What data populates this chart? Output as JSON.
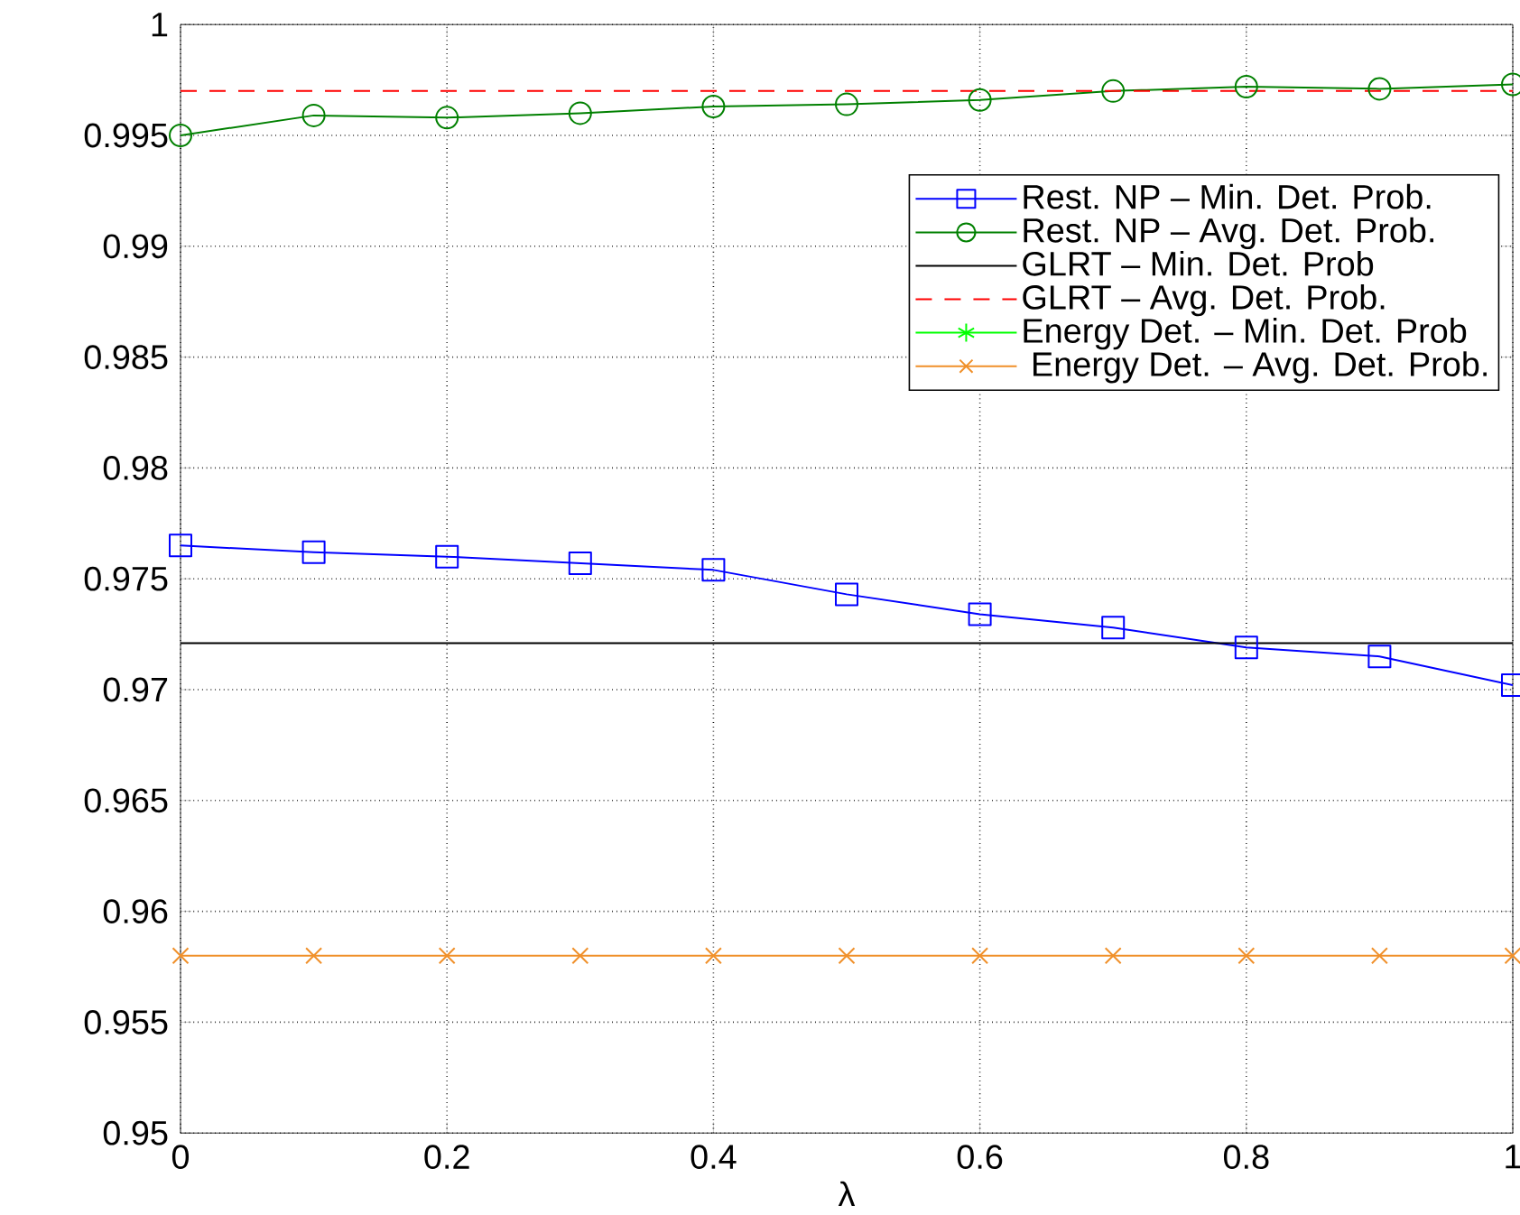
{
  "chart_data": {
    "type": "line",
    "xlabel": "λ",
    "xlim": [
      0,
      1
    ],
    "ylim": [
      0.95,
      1
    ],
    "xticks": [
      0,
      0.2,
      0.4,
      0.6,
      0.8,
      1
    ],
    "yticks": [
      0.95,
      0.955,
      0.96,
      0.965,
      0.97,
      0.975,
      0.98,
      0.985,
      0.99,
      0.995,
      1
    ],
    "x": [
      0,
      0.1,
      0.2,
      0.3,
      0.4,
      0.5,
      0.6,
      0.7,
      0.8,
      0.9,
      1
    ],
    "grid": true,
    "legend": "top right",
    "line_style": "solid",
    "series": [
      {
        "name": "Rest. NP – Min. Det. Prob.",
        "color": "#0000ff",
        "marker": "square",
        "values": [
          0.9765,
          0.9762,
          0.976,
          0.9757,
          0.9754,
          0.9743,
          0.9734,
          0.9728,
          0.9719,
          0.9715,
          0.9702
        ]
      },
      {
        "name": "Rest. NP – Avg. Det. Prob.",
        "color": "#008000",
        "marker": "circle",
        "values": [
          0.995,
          0.9959,
          0.9958,
          0.996,
          0.9963,
          0.9964,
          0.9966,
          0.997,
          0.9972,
          0.9971,
          0.9973
        ]
      },
      {
        "name": "GLRT – Min. Det. Prob",
        "color": "#000000",
        "marker": "none",
        "values": [
          0.9721,
          0.9721,
          0.9721,
          0.9721,
          0.9721,
          0.9721,
          0.9721,
          0.9721,
          0.9721,
          0.9721,
          0.9721
        ]
      },
      {
        "name": "GLRT – Avg. Det. Prob.",
        "color": "#ff0000",
        "marker": "none",
        "line_style": "dashed",
        "values": [
          0.997,
          0.997,
          0.997,
          0.997,
          0.997,
          0.997,
          0.997,
          0.997,
          0.997,
          0.997,
          0.997
        ]
      },
      {
        "name": "Energy Det. – Min. Det. Prob",
        "color": "#00ff00",
        "marker": "star",
        "values": [
          null,
          null,
          null,
          null,
          null,
          null,
          null,
          null,
          null,
          null,
          null
        ]
      },
      {
        "name": " Energy Det. – Avg. Det. Prob.",
        "color": "#f0902a",
        "marker": "cross",
        "values": [
          0.958,
          0.958,
          0.958,
          0.958,
          0.958,
          0.958,
          0.958,
          0.958,
          0.958,
          0.958,
          0.958
        ]
      }
    ]
  }
}
